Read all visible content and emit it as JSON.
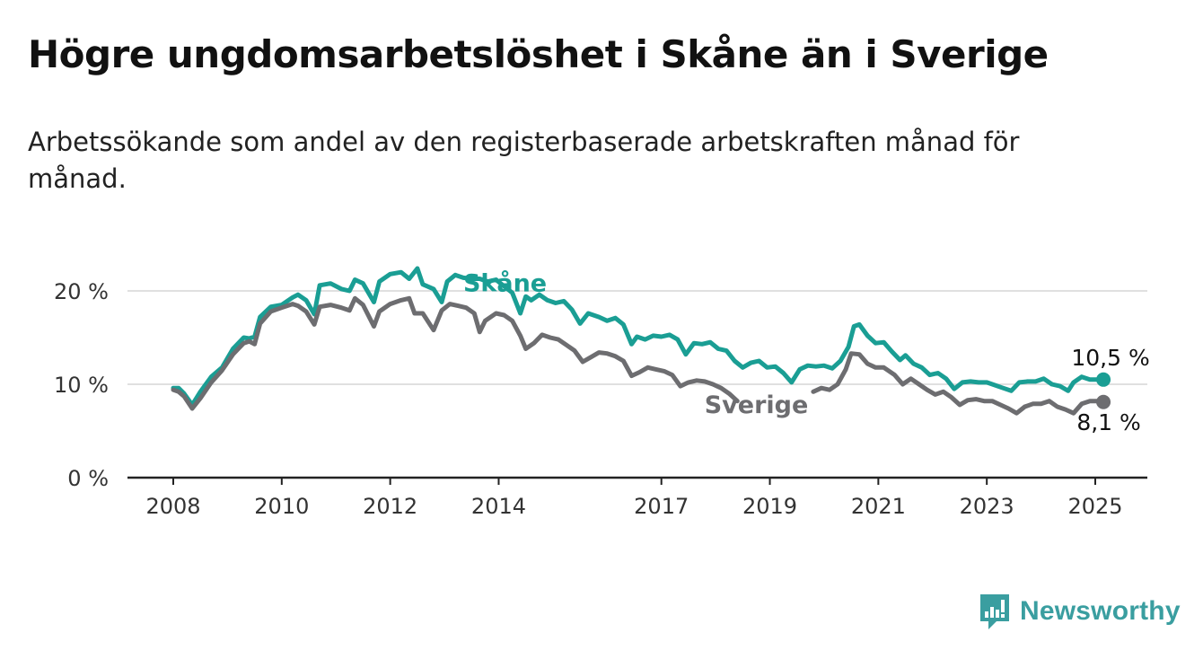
{
  "header": {
    "title": "Högre ungdomsarbetslöshet i Skåne än i Sverige",
    "subtitle": "Arbetssökande som andel av den registerbaserade arbetskraften månad för månad."
  },
  "brand": {
    "name": "Newsworthy",
    "logo_icon": "bar-chart-speech-bubble-icon",
    "color": "#3a9ea0"
  },
  "chart_data": {
    "type": "line",
    "ylim": [
      0,
      22.5
    ],
    "xlim": [
      2007.5,
      2026.0
    ],
    "y_ticks": [
      0,
      10,
      20
    ],
    "y_tick_labels": [
      "0 %",
      "10 %",
      "20 %"
    ],
    "x_ticks": [
      2008,
      2010,
      2012,
      2014,
      2017,
      2019,
      2021,
      2023,
      2025
    ],
    "x_tick_labels": [
      "2008",
      "2010",
      "2012",
      "2014",
      "2017",
      "2019",
      "2021",
      "2023",
      "2025"
    ],
    "grid": true,
    "series": [
      {
        "name": "Skåne",
        "color": "#1a9e94",
        "end_label": "10,5 %",
        "points": [
          [
            2008.0,
            9.6
          ],
          [
            2008.1,
            9.6
          ],
          [
            2008.2,
            9.0
          ],
          [
            2008.35,
            7.8
          ],
          [
            2008.5,
            9.2
          ],
          [
            2008.7,
            10.8
          ],
          [
            2008.9,
            11.8
          ],
          [
            2009.1,
            13.8
          ],
          [
            2009.3,
            15.0
          ],
          [
            2009.4,
            14.9
          ],
          [
            2009.5,
            15.1
          ],
          [
            2009.6,
            17.2
          ],
          [
            2009.8,
            18.3
          ],
          [
            2010.0,
            18.5
          ],
          [
            2010.2,
            19.3
          ],
          [
            2010.3,
            19.6
          ],
          [
            2010.45,
            19.0
          ],
          [
            2010.6,
            17.5
          ],
          [
            2010.7,
            20.6
          ],
          [
            2010.9,
            20.8
          ],
          [
            2011.1,
            20.2
          ],
          [
            2011.25,
            20.0
          ],
          [
            2011.35,
            21.2
          ],
          [
            2011.5,
            20.8
          ],
          [
            2011.7,
            18.8
          ],
          [
            2011.8,
            21.0
          ],
          [
            2012.0,
            21.8
          ],
          [
            2012.2,
            22.0
          ],
          [
            2012.35,
            21.3
          ],
          [
            2012.5,
            22.4
          ],
          [
            2012.6,
            20.7
          ],
          [
            2012.8,
            20.2
          ],
          [
            2012.95,
            18.8
          ],
          [
            2013.05,
            21.0
          ],
          [
            2013.2,
            21.7
          ],
          [
            2013.35,
            21.4
          ],
          [
            2013.5,
            21.3
          ],
          [
            2013.65,
            21.3
          ],
          [
            2013.8,
            21.0
          ],
          [
            2013.95,
            21.2
          ],
          [
            2014.1,
            20.5
          ],
          [
            2014.25,
            19.8
          ],
          [
            2014.4,
            17.6
          ],
          [
            2014.5,
            19.4
          ],
          [
            2014.6,
            19.0
          ],
          [
            2014.75,
            19.6
          ],
          [
            2014.9,
            19.0
          ],
          [
            2015.05,
            18.7
          ],
          [
            2015.2,
            18.9
          ],
          [
            2015.35,
            18.0
          ],
          [
            2015.5,
            16.5
          ],
          [
            2015.65,
            17.6
          ],
          [
            2015.85,
            17.2
          ],
          [
            2016.0,
            16.8
          ],
          [
            2016.15,
            17.1
          ],
          [
            2016.3,
            16.4
          ],
          [
            2016.45,
            14.3
          ],
          [
            2016.55,
            15.1
          ],
          [
            2016.7,
            14.8
          ],
          [
            2016.85,
            15.2
          ],
          [
            2017.0,
            15.1
          ],
          [
            2017.15,
            15.3
          ],
          [
            2017.3,
            14.8
          ],
          [
            2017.45,
            13.2
          ],
          [
            2017.6,
            14.4
          ],
          [
            2017.75,
            14.3
          ],
          [
            2017.9,
            14.5
          ],
          [
            2018.05,
            13.8
          ],
          [
            2018.2,
            13.6
          ],
          [
            2018.35,
            12.5
          ],
          [
            2018.5,
            11.8
          ],
          [
            2018.65,
            12.3
          ],
          [
            2018.8,
            12.5
          ],
          [
            2018.95,
            11.8
          ],
          [
            2019.1,
            11.9
          ],
          [
            2019.25,
            11.2
          ],
          [
            2019.4,
            10.2
          ],
          [
            2019.55,
            11.6
          ],
          [
            2019.7,
            12.0
          ],
          [
            2019.85,
            11.9
          ],
          [
            2020.0,
            12.0
          ],
          [
            2020.15,
            11.7
          ],
          [
            2020.3,
            12.5
          ],
          [
            2020.45,
            14.0
          ],
          [
            2020.55,
            16.2
          ],
          [
            2020.65,
            16.4
          ],
          [
            2020.8,
            15.2
          ],
          [
            2020.95,
            14.4
          ],
          [
            2021.1,
            14.5
          ],
          [
            2021.25,
            13.5
          ],
          [
            2021.4,
            12.6
          ],
          [
            2021.5,
            13.1
          ],
          [
            2021.65,
            12.2
          ],
          [
            2021.8,
            11.8
          ],
          [
            2021.95,
            11.0
          ],
          [
            2022.1,
            11.2
          ],
          [
            2022.25,
            10.6
          ],
          [
            2022.4,
            9.5
          ],
          [
            2022.55,
            10.2
          ],
          [
            2022.7,
            10.3
          ],
          [
            2022.85,
            10.2
          ],
          [
            2023.0,
            10.2
          ],
          [
            2023.15,
            9.9
          ],
          [
            2023.3,
            9.6
          ],
          [
            2023.45,
            9.3
          ],
          [
            2023.6,
            10.2
          ],
          [
            2023.75,
            10.3
          ],
          [
            2023.9,
            10.3
          ],
          [
            2024.05,
            10.6
          ],
          [
            2024.2,
            10.0
          ],
          [
            2024.35,
            9.8
          ],
          [
            2024.5,
            9.3
          ],
          [
            2024.6,
            10.2
          ],
          [
            2024.75,
            10.8
          ],
          [
            2024.9,
            10.5
          ],
          [
            2025.05,
            10.5
          ],
          [
            2025.15,
            10.5
          ]
        ]
      },
      {
        "name": "Sverige",
        "color": "#6d6d70",
        "end_label": "8,1 %",
        "points": [
          [
            2008.0,
            9.4
          ],
          [
            2008.1,
            9.2
          ],
          [
            2008.2,
            8.7
          ],
          [
            2008.35,
            7.4
          ],
          [
            2008.5,
            8.5
          ],
          [
            2008.7,
            10.2
          ],
          [
            2008.9,
            11.5
          ],
          [
            2009.1,
            13.2
          ],
          [
            2009.3,
            14.4
          ],
          [
            2009.4,
            14.6
          ],
          [
            2009.5,
            14.3
          ],
          [
            2009.6,
            16.5
          ],
          [
            2009.8,
            17.8
          ],
          [
            2010.0,
            18.2
          ],
          [
            2010.2,
            18.6
          ],
          [
            2010.3,
            18.4
          ],
          [
            2010.45,
            17.8
          ],
          [
            2010.6,
            16.4
          ],
          [
            2010.7,
            18.3
          ],
          [
            2010.9,
            18.5
          ],
          [
            2011.1,
            18.2
          ],
          [
            2011.25,
            17.9
          ],
          [
            2011.35,
            19.2
          ],
          [
            2011.5,
            18.5
          ],
          [
            2011.7,
            16.2
          ],
          [
            2011.8,
            17.8
          ],
          [
            2012.0,
            18.6
          ],
          [
            2012.2,
            19.0
          ],
          [
            2012.35,
            19.2
          ],
          [
            2012.45,
            17.6
          ],
          [
            2012.6,
            17.6
          ],
          [
            2012.8,
            15.8
          ],
          [
            2012.95,
            17.9
          ],
          [
            2013.1,
            18.6
          ],
          [
            2013.25,
            18.4
          ],
          [
            2013.4,
            18.2
          ],
          [
            2013.55,
            17.6
          ],
          [
            2013.65,
            15.6
          ],
          [
            2013.75,
            16.8
          ],
          [
            2013.95,
            17.6
          ],
          [
            2014.1,
            17.4
          ],
          [
            2014.25,
            16.8
          ],
          [
            2014.4,
            15.2
          ],
          [
            2014.5,
            13.8
          ],
          [
            2014.65,
            14.4
          ],
          [
            2014.8,
            15.3
          ],
          [
            2014.95,
            15.0
          ],
          [
            2015.1,
            14.8
          ],
          [
            2015.25,
            14.2
          ],
          [
            2015.4,
            13.6
          ],
          [
            2015.55,
            12.4
          ],
          [
            2015.7,
            12.9
          ],
          [
            2015.85,
            13.4
          ],
          [
            2016.0,
            13.3
          ],
          [
            2016.15,
            13.0
          ],
          [
            2016.3,
            12.5
          ],
          [
            2016.45,
            10.9
          ],
          [
            2016.6,
            11.3
          ],
          [
            2016.75,
            11.8
          ],
          [
            2016.9,
            11.6
          ],
          [
            2017.05,
            11.4
          ],
          [
            2017.2,
            11.0
          ],
          [
            2017.35,
            9.8
          ],
          [
            2017.5,
            10.2
          ],
          [
            2017.65,
            10.4
          ],
          [
            2017.8,
            10.3
          ],
          [
            2017.95,
            10.0
          ],
          [
            2018.1,
            9.6
          ],
          [
            2018.25,
            9.0
          ],
          [
            2018.4,
            8.2
          ],
          [
            2019.8,
            9.2
          ],
          [
            2019.95,
            9.6
          ],
          [
            2020.1,
            9.4
          ],
          [
            2020.25,
            10.0
          ],
          [
            2020.4,
            11.6
          ],
          [
            2020.5,
            13.3
          ],
          [
            2020.65,
            13.2
          ],
          [
            2020.8,
            12.2
          ],
          [
            2020.95,
            11.8
          ],
          [
            2021.1,
            11.8
          ],
          [
            2021.3,
            11.0
          ],
          [
            2021.45,
            10.0
          ],
          [
            2021.6,
            10.6
          ],
          [
            2021.75,
            10.0
          ],
          [
            2021.9,
            9.4
          ],
          [
            2022.05,
            8.9
          ],
          [
            2022.2,
            9.2
          ],
          [
            2022.35,
            8.6
          ],
          [
            2022.5,
            7.8
          ],
          [
            2022.65,
            8.3
          ],
          [
            2022.8,
            8.4
          ],
          [
            2022.95,
            8.2
          ],
          [
            2023.1,
            8.2
          ],
          [
            2023.25,
            7.8
          ],
          [
            2023.4,
            7.4
          ],
          [
            2023.55,
            6.9
          ],
          [
            2023.7,
            7.6
          ],
          [
            2023.85,
            7.9
          ],
          [
            2024.0,
            7.9
          ],
          [
            2024.15,
            8.2
          ],
          [
            2024.3,
            7.6
          ],
          [
            2024.45,
            7.3
          ],
          [
            2024.6,
            6.9
          ],
          [
            2024.75,
            7.9
          ],
          [
            2024.9,
            8.2
          ],
          [
            2025.05,
            8.2
          ],
          [
            2025.15,
            8.1
          ]
        ]
      }
    ],
    "annotations": [
      {
        "text": "Skåne",
        "series": "Skåne",
        "x": 2014.2,
        "y": 21.2
      },
      {
        "text": "Sverige",
        "series": "Sverige",
        "x": 2019.0,
        "y": 8.1
      }
    ]
  }
}
